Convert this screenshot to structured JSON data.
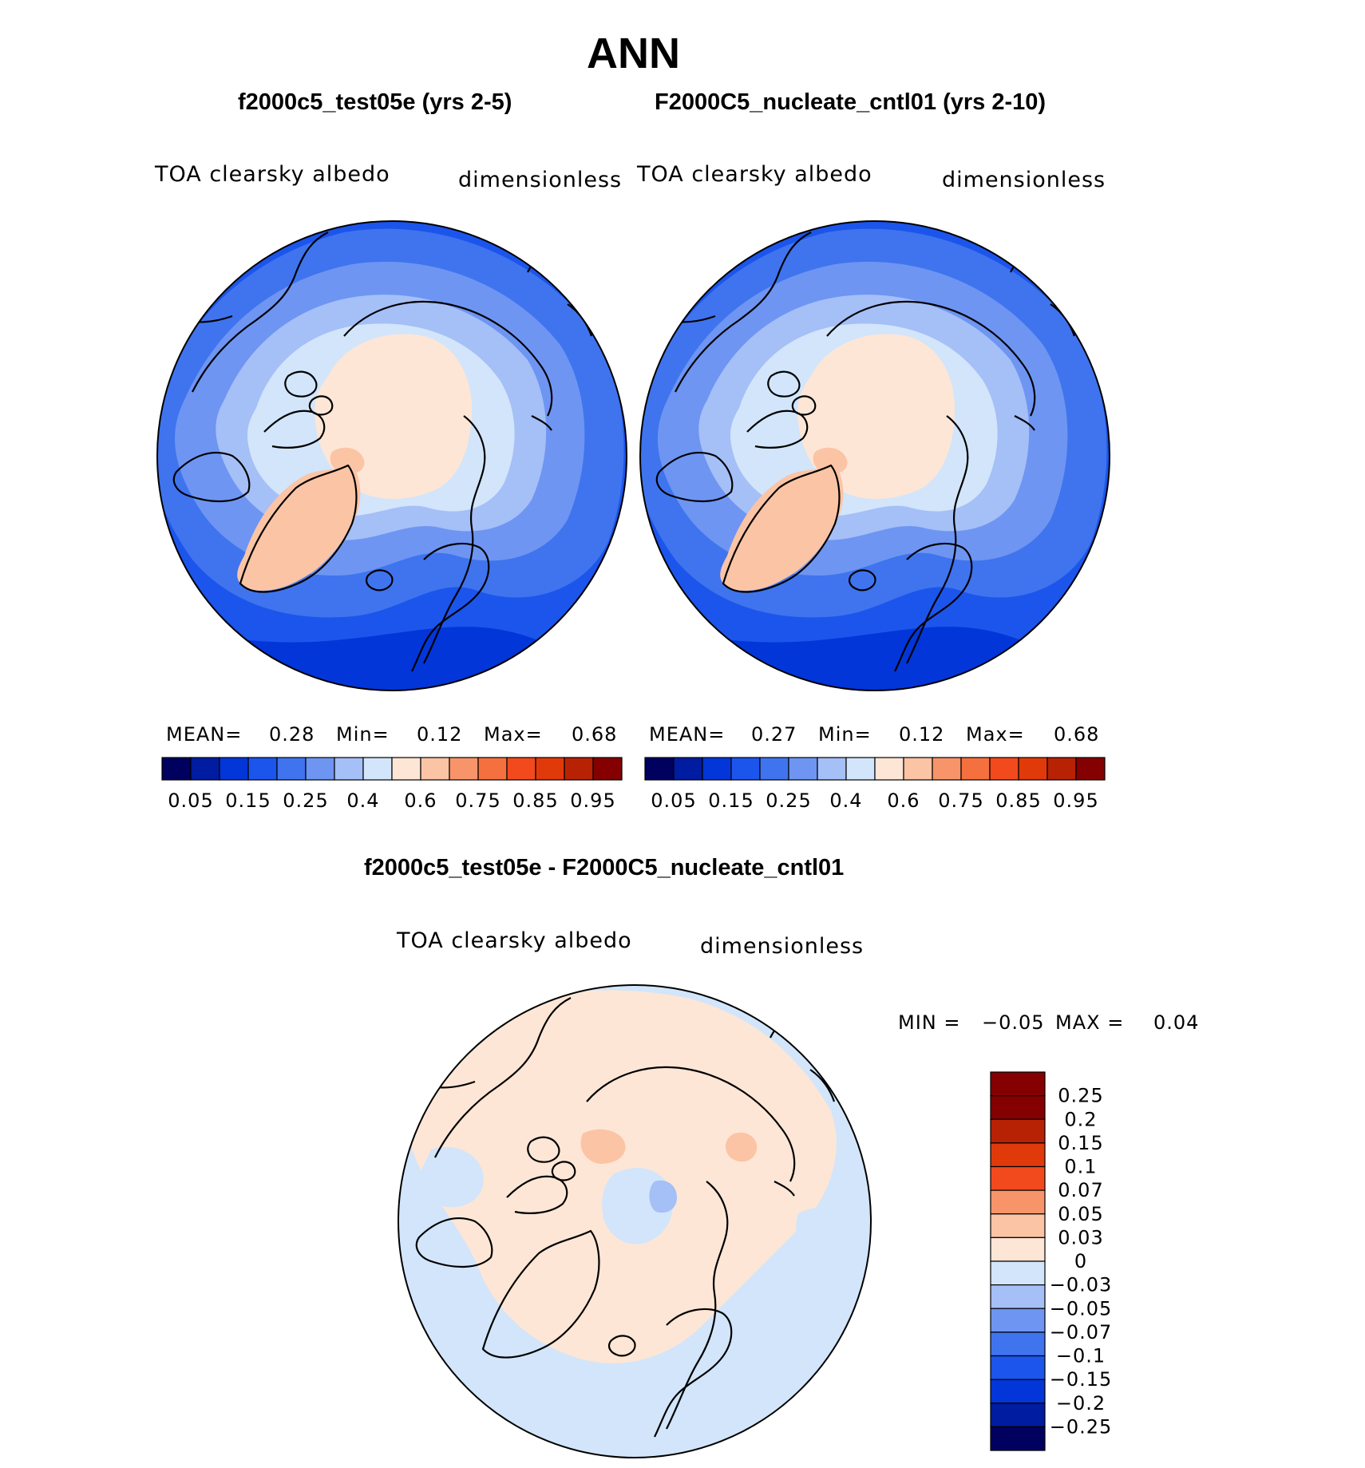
{
  "season": "ANN",
  "panels": [
    {
      "case_title": "f2000c5_test05e (yrs 2-5)",
      "variable": "TOA clearsky albedo",
      "units": "dimensionless",
      "stats": {
        "mean_label": "MEAN=",
        "mean": "0.28",
        "min_label": "Min=",
        "min": "0.12",
        "max_label": "Max=",
        "max": "0.68"
      }
    },
    {
      "case_title": "F2000C5_nucleate_cntl01 (yrs 2-10)",
      "variable": "TOA clearsky albedo",
      "units": "dimensionless",
      "stats": {
        "mean_label": "MEAN=",
        "mean": "0.27",
        "min_label": "Min=",
        "min": "0.12",
        "max_label": "Max=",
        "max": "0.68"
      }
    }
  ],
  "difference": {
    "title": "f2000c5_test05e - F2000C5_nucleate_cntl01",
    "variable": "TOA clearsky albedo",
    "units": "dimensionless",
    "min_label": "MIN =",
    "min": "−0.05",
    "max_label": "MAX =",
    "max": "0.04"
  },
  "colorbar_top": {
    "colors": [
      "#00005f",
      "#001ca0",
      "#0236d8",
      "#1c55ec",
      "#3f74ee",
      "#6e95f2",
      "#a5bff7",
      "#d2e5fa",
      "#fde6d6",
      "#fbc4a5",
      "#f8946a",
      "#f4703e",
      "#f24a1d",
      "#e03a0b",
      "#b82204",
      "#850000"
    ],
    "tick_labels": [
      "0.05",
      "0.15",
      "0.25",
      "0.4",
      "0.6",
      "0.75",
      "0.85",
      "0.95"
    ]
  },
  "colorbar_diff": {
    "colors": [
      "#850000",
      "#b82204",
      "#e03a0b",
      "#f24a1d",
      "#f8946a",
      "#fbc4a5",
      "#fde6d6",
      "#d2e5fa",
      "#a5bff7",
      "#6e95f2",
      "#3f74ee",
      "#1c55ec",
      "#0236d8",
      "#001ca0",
      "#00005f"
    ],
    "tick_labels": [
      "0.25",
      "0.2",
      "0.15",
      "0.1",
      "0.07",
      "0.05",
      "0.03",
      "0",
      "−0.03",
      "−0.05",
      "−0.07",
      "−0.1",
      "−0.15",
      "−0.2",
      "−0.25"
    ]
  },
  "map_colors": {
    "ocean_deep": "#0236d8",
    "ocean": "#1c55ec",
    "mid": "#3f74ee",
    "light1": "#6e95f2",
    "light2": "#a5bff7",
    "light3": "#d2e5fa",
    "ice": "#fde6d6",
    "greenland": "#fbc4a5",
    "diff_pos": "#fde6d6",
    "diff_neg": "#d2e5fa",
    "diff_pos2": "#fbc4a5",
    "diff_neg2": "#a5bff7"
  }
}
